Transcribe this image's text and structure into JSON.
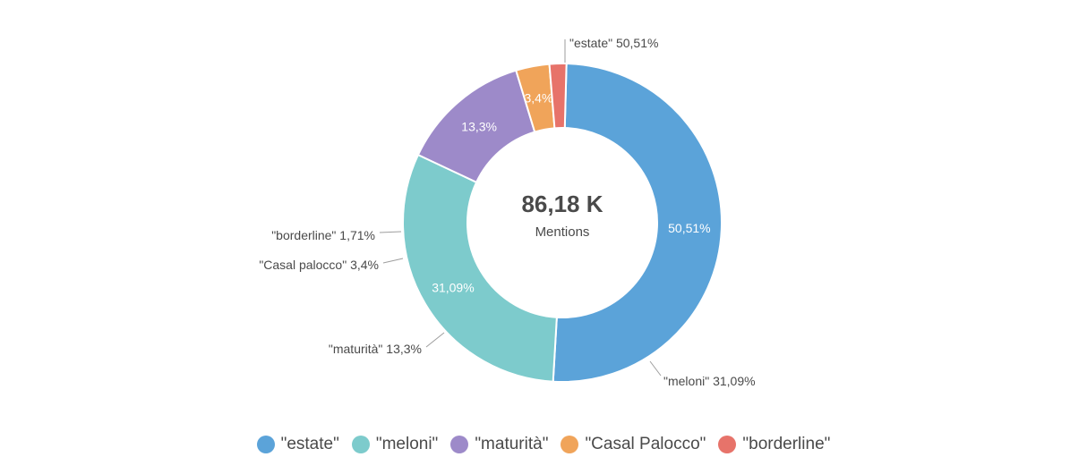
{
  "chart_data": {
    "type": "pie",
    "variant": "donut",
    "center": {
      "value": "86,18 K",
      "label": "Mentions"
    },
    "slices": [
      {
        "name": "\"estate\"",
        "value": 50.51,
        "inner_label": "50,51%",
        "outer_label": "\"estate\" 50,51%",
        "color": "#5ba3d9"
      },
      {
        "name": "\"meloni\"",
        "value": 31.09,
        "inner_label": "31,09%",
        "outer_label": "\"meloni\" 31,09%",
        "color": "#7dcbcc"
      },
      {
        "name": "\"maturità\"",
        "value": 13.3,
        "inner_label": "13,3%",
        "outer_label": "\"maturità\" 13,3%",
        "color": "#9d8ac9"
      },
      {
        "name": "\"Casal palocco\"",
        "value": 3.4,
        "inner_label": "3,4%",
        "outer_label": "\"Casal palocco\" 3,4%",
        "color": "#f0a45a"
      },
      {
        "name": "\"borderline\"",
        "value": 1.71,
        "inner_label": "",
        "outer_label": "\"borderline\" 1,71%",
        "color": "#e7736a"
      }
    ],
    "legend": {
      "placement": "bottom",
      "items": [
        {
          "label": "\"estate\"",
          "color": "#5ba3d9"
        },
        {
          "label": "\"meloni\"",
          "color": "#7dcbcc"
        },
        {
          "label": "\"maturità\"",
          "color": "#9d8ac9"
        },
        {
          "label": "\"Casal Palocco\"",
          "color": "#f0a45a"
        },
        {
          "label": "\"borderline\"",
          "color": "#e7736a"
        }
      ]
    }
  }
}
